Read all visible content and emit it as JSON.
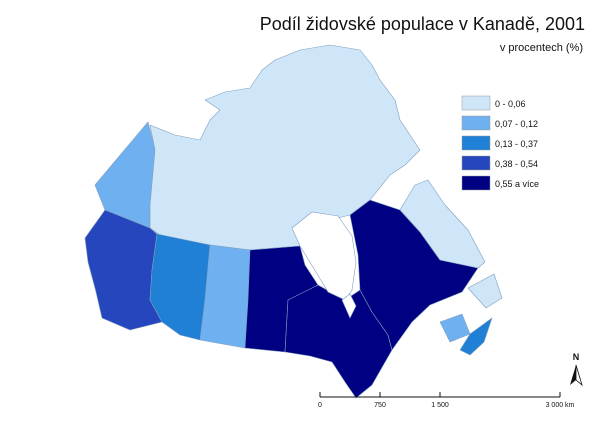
{
  "title": "Podíl židovské populace v Kanadě, 2001",
  "subtitle": "v procentech (%)",
  "legend": [
    {
      "label": "0 - 0,06",
      "color": "#cfe5f8"
    },
    {
      "label": "0,07 - 0,12",
      "color": "#6fb1f0"
    },
    {
      "label": "0,13 - 0,37",
      "color": "#1f80d6"
    },
    {
      "label": "0,38 - 0,54",
      "color": "#2646bd"
    },
    {
      "label": "0,55 a více",
      "color": "#000082"
    }
  ],
  "scale_bar": {
    "labels": [
      "0",
      "750",
      "1 500",
      "3 000 km"
    ]
  },
  "north_arrow": "N"
}
